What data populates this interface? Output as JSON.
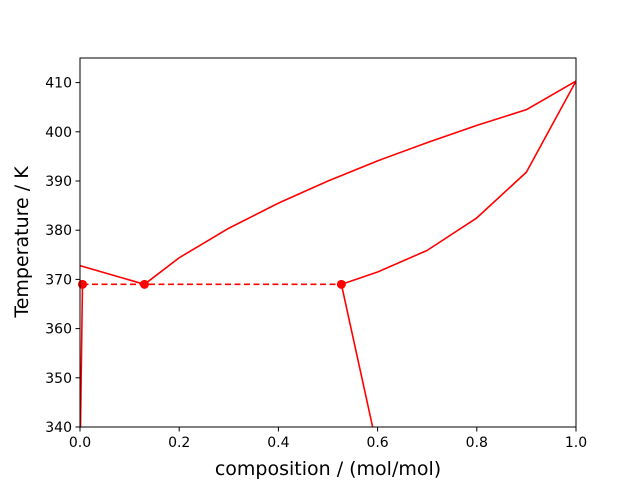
{
  "chart_data": {
    "type": "line",
    "title": "",
    "xlabel": "composition / (mol/mol)",
    "ylabel": "Temperature / K",
    "xlim": [
      0.0,
      1.0
    ],
    "ylim": [
      340,
      415
    ],
    "xticks": [
      0.0,
      0.2,
      0.4,
      0.6,
      0.8,
      1.0
    ],
    "xtick_labels": [
      "0.0",
      "0.2",
      "0.4",
      "0.6",
      "0.8",
      "1.0"
    ],
    "yticks": [
      340,
      350,
      360,
      370,
      380,
      390,
      400,
      410
    ],
    "ytick_labels": [
      "340",
      "350",
      "360",
      "370",
      "380",
      "390",
      "400",
      "410"
    ],
    "grid": false,
    "legend": "none",
    "color": "#ff0000",
    "series": [
      {
        "style": "solid",
        "points": [
          [
            0.0,
            372.8
          ],
          [
            0.13,
            369.0
          ]
        ]
      },
      {
        "style": "solid",
        "points": [
          [
            0.13,
            369.0
          ],
          [
            0.2,
            374.4
          ],
          [
            0.3,
            380.4
          ],
          [
            0.4,
            385.5
          ],
          [
            0.5,
            390.0
          ],
          [
            0.6,
            394.1
          ],
          [
            0.7,
            397.8
          ],
          [
            0.8,
            401.3
          ],
          [
            0.9,
            404.5
          ],
          [
            1.0,
            410.3
          ]
        ]
      },
      {
        "style": "solid",
        "points": [
          [
            0.527,
            369.0
          ],
          [
            0.6,
            371.5
          ],
          [
            0.7,
            375.9
          ],
          [
            0.8,
            382.5
          ],
          [
            0.9,
            391.8
          ],
          [
            1.0,
            410.3
          ]
        ]
      },
      {
        "style": "solid",
        "points": [
          [
            0.527,
            369.0
          ],
          [
            0.59,
            340.0
          ]
        ]
      },
      {
        "style": "solid",
        "points": [
          [
            0.005,
            369.0
          ],
          [
            0.001,
            340.0
          ]
        ]
      },
      {
        "style": "dashed",
        "points": [
          [
            0.005,
            369.0
          ],
          [
            0.527,
            369.0
          ]
        ]
      }
    ],
    "markers": [
      [
        0.005,
        369.0
      ],
      [
        0.13,
        369.0
      ],
      [
        0.527,
        369.0
      ]
    ]
  }
}
